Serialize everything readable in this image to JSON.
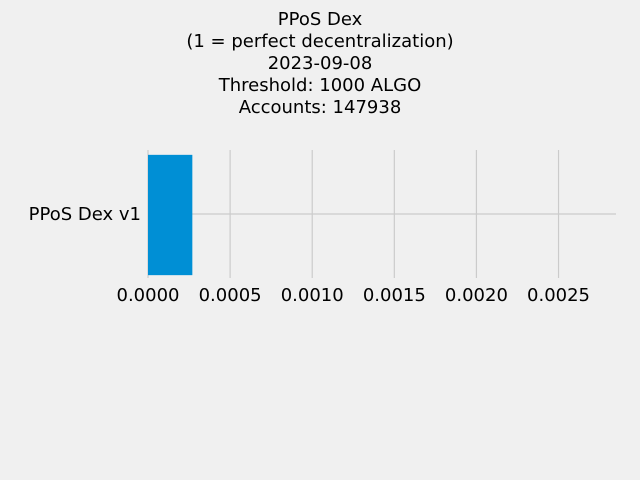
{
  "chart_data": {
    "type": "bar",
    "orientation": "horizontal",
    "title_lines": [
      "PPoS Dex",
      "(1 = perfect decentralization)",
      "2023-09-08",
      "Threshold: 1000 ALGO",
      "Accounts: 147938"
    ],
    "categories": [
      "PPoS Dex v1"
    ],
    "values": [
      0.00027
    ],
    "xlim": [
      0.0,
      0.00285
    ],
    "xticks": [
      "0.0000",
      "0.0005",
      "0.0010",
      "0.0015",
      "0.0020",
      "0.0025"
    ],
    "xtick_values": [
      0,
      0.0005,
      0.001,
      0.0015,
      0.002,
      0.0025
    ],
    "xlabel": "",
    "ylabel": "",
    "grid": true,
    "bar_color": "#008fd5",
    "grid_color": "#cbcbcb",
    "background": "#f0f0f0"
  }
}
